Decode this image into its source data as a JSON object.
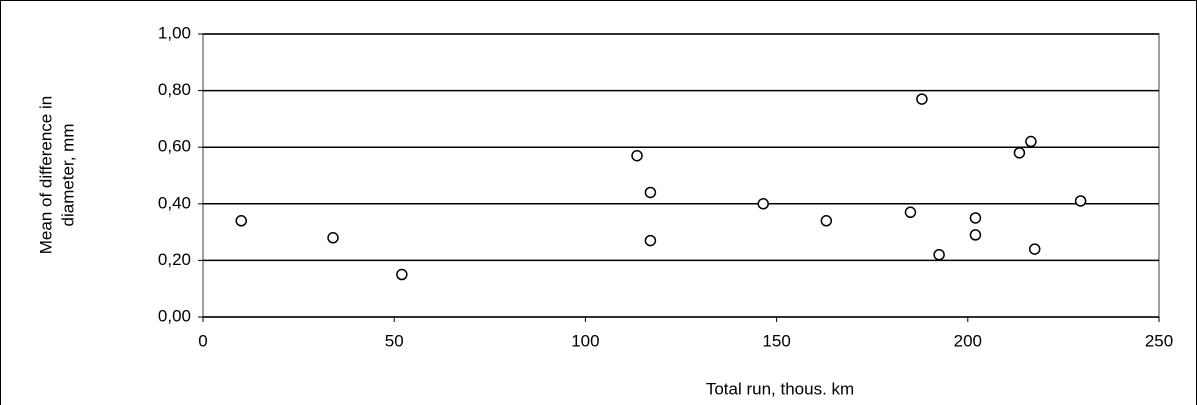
{
  "chart_data": {
    "type": "scatter",
    "x_label": "Total run, thous. km",
    "y_label": [
      "Mean of difference in",
      "diameter, mm"
    ],
    "x": [
      10,
      34,
      52,
      113.5,
      117,
      117,
      146.5,
      163,
      185,
      188,
      192.5,
      202,
      202,
      213.5,
      216.5,
      217.5,
      229.5
    ],
    "values": [
      0.34,
      0.28,
      0.15,
      0.57,
      0.44,
      0.27,
      0.4,
      0.34,
      0.37,
      0.77,
      0.22,
      0.35,
      0.29,
      0.58,
      0.62,
      0.24,
      0.41
    ],
    "color": "#000000",
    "xlim": [
      0,
      250
    ],
    "xticks": [
      0,
      50,
      100,
      150,
      200,
      250
    ],
    "ylim": [
      0,
      1
    ],
    "yticks": [
      {
        "value": 0,
        "label": "0,00"
      },
      {
        "value": 0.2,
        "label": "0,20"
      },
      {
        "value": 0.4,
        "label": "0,40"
      },
      {
        "value": 0.6,
        "label": "0,60"
      },
      {
        "value": 0.8,
        "label": "0,80"
      },
      {
        "value": 1,
        "label": "1,00"
      }
    ],
    "grid": true
  }
}
